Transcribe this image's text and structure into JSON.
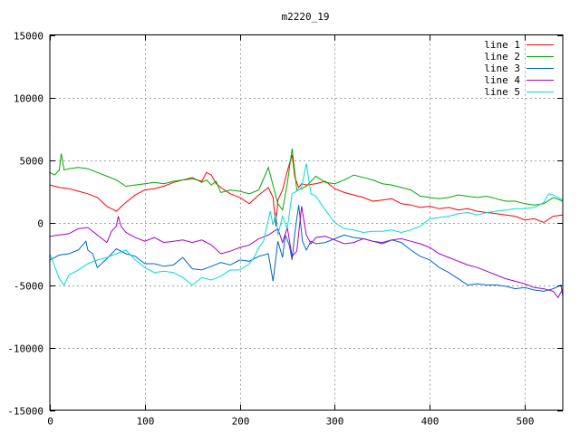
{
  "chart_data": {
    "type": "line",
    "title": "m2220_19",
    "xlabel": "",
    "ylabel": "",
    "xlim": [
      0,
      540
    ],
    "ylim": [
      -15000,
      15000
    ],
    "xticks": [
      0,
      100,
      200,
      300,
      400,
      500
    ],
    "yticks": [
      -15000,
      -10000,
      -5000,
      0,
      5000,
      10000,
      15000
    ],
    "grid": true,
    "legend_position": "top-right",
    "series": [
      {
        "name": "line 1",
        "color": "#ff0000",
        "x": [
          0,
          10,
          20,
          30,
          40,
          50,
          60,
          70,
          80,
          90,
          100,
          110,
          120,
          130,
          140,
          150,
          160,
          165,
          170,
          175,
          180,
          190,
          200,
          210,
          220,
          230,
          235,
          238,
          240,
          245,
          250,
          255,
          258,
          262,
          265,
          270,
          280,
          290,
          300,
          310,
          320,
          330,
          340,
          350,
          360,
          370,
          380,
          390,
          400,
          410,
          420,
          430,
          440,
          450,
          460,
          470,
          480,
          490,
          500,
          510,
          520,
          530,
          540
        ],
        "y": [
          3000,
          2800,
          2700,
          2500,
          2300,
          2000,
          1300,
          900,
          1600,
          2200,
          2600,
          2700,
          2900,
          3200,
          3400,
          3500,
          3300,
          4000,
          3800,
          3100,
          2800,
          2300,
          2000,
          1500,
          2200,
          2800,
          2000,
          -300,
          1800,
          2600,
          4100,
          5400,
          3600,
          2800,
          3100,
          3000,
          3100,
          3300,
          2700,
          2400,
          2200,
          2000,
          1700,
          1800,
          1900,
          1500,
          1400,
          1200,
          1300,
          1100,
          1200,
          1000,
          1100,
          900,
          800,
          700,
          600,
          500,
          200,
          300,
          0,
          500,
          600
        ]
      },
      {
        "name": "line 2",
        "color": "#00aa00",
        "x": [
          0,
          5,
          10,
          12,
          15,
          20,
          30,
          40,
          50,
          60,
          70,
          80,
          90,
          100,
          110,
          120,
          130,
          140,
          150,
          160,
          165,
          170,
          175,
          180,
          190,
          200,
          210,
          220,
          230,
          240,
          245,
          250,
          255,
          260,
          265,
          270,
          280,
          290,
          300,
          310,
          320,
          330,
          340,
          350,
          360,
          370,
          380,
          390,
          400,
          410,
          420,
          430,
          440,
          450,
          460,
          470,
          480,
          490,
          500,
          510,
          520,
          530,
          540
        ],
        "y": [
          4000,
          3800,
          4200,
          5500,
          4200,
          4300,
          4400,
          4300,
          4000,
          3700,
          3400,
          2900,
          3000,
          3100,
          3200,
          3100,
          3300,
          3400,
          3600,
          3200,
          3400,
          3000,
          3300,
          2400,
          2600,
          2500,
          2300,
          2600,
          4400,
          1500,
          1000,
          3100,
          5900,
          2600,
          2700,
          2900,
          3700,
          3200,
          3100,
          3400,
          3800,
          3600,
          3400,
          3100,
          3000,
          2800,
          2600,
          2100,
          2000,
          1900,
          2000,
          2200,
          2100,
          2000,
          2100,
          1900,
          1700,
          1700,
          1500,
          1400,
          1500,
          2000,
          1700
        ]
      },
      {
        "name": "line 3",
        "color": "#0066cc",
        "x": [
          0,
          10,
          20,
          30,
          38,
          40,
          45,
          50,
          60,
          70,
          80,
          90,
          100,
          110,
          120,
          130,
          140,
          150,
          160,
          170,
          180,
          190,
          200,
          210,
          220,
          230,
          235,
          240,
          245,
          248,
          252,
          255,
          258,
          262,
          266,
          270,
          275,
          280,
          290,
          300,
          310,
          320,
          330,
          340,
          350,
          360,
          370,
          380,
          390,
          400,
          410,
          420,
          430,
          440,
          450,
          460,
          470,
          480,
          490,
          500,
          510,
          520,
          530,
          538,
          540
        ],
        "y": [
          -3000,
          -2600,
          -2500,
          -2200,
          -1500,
          -2200,
          -2500,
          -3600,
          -2900,
          -2100,
          -2500,
          -2700,
          -3300,
          -3300,
          -3500,
          -3400,
          -2800,
          -3700,
          -3800,
          -3500,
          -3200,
          -3400,
          -3000,
          -3100,
          -2700,
          -2500,
          -4700,
          -1500,
          -2800,
          -1000,
          -1800,
          -3000,
          -800,
          1400,
          -1500,
          -2200,
          -1500,
          -1700,
          -1600,
          -1300,
          -1000,
          -1200,
          -1300,
          -1500,
          -1700,
          -1400,
          -1600,
          -2200,
          -2700,
          -3000,
          -3600,
          -4000,
          -4500,
          -5000,
          -4900,
          -5000,
          -5000,
          -5100,
          -5300,
          -5200,
          -5400,
          -5500,
          -5300,
          -5000,
          -5900
        ]
      },
      {
        "name": "line 4",
        "color": "#aa00cc",
        "x": [
          0,
          10,
          20,
          30,
          40,
          50,
          60,
          65,
          70,
          72,
          75,
          80,
          90,
          100,
          110,
          120,
          130,
          140,
          150,
          160,
          170,
          180,
          190,
          200,
          210,
          220,
          230,
          240,
          245,
          250,
          255,
          260,
          265,
          270,
          275,
          280,
          290,
          300,
          310,
          320,
          330,
          340,
          350,
          360,
          370,
          380,
          390,
          400,
          410,
          420,
          430,
          440,
          450,
          460,
          470,
          480,
          490,
          500,
          510,
          520,
          530,
          535,
          540
        ],
        "y": [
          -1100,
          -1000,
          -900,
          -500,
          -400,
          -1000,
          -1600,
          -700,
          -300,
          500,
          -300,
          -800,
          -1200,
          -1500,
          -1200,
          -1600,
          -1500,
          -1400,
          -1600,
          -1400,
          -1800,
          -2500,
          -2300,
          -2000,
          -1800,
          -1300,
          -1000,
          -500,
          -1600,
          -400,
          -2700,
          -2300,
          1300,
          -1000,
          -1700,
          -1200,
          -1100,
          -1400,
          -1700,
          -1600,
          -1300,
          -1500,
          -1600,
          -1400,
          -1300,
          -1500,
          -1700,
          -2000,
          -2500,
          -2800,
          -3100,
          -3400,
          -3600,
          -3900,
          -4200,
          -4500,
          -4700,
          -4900,
          -5200,
          -5300,
          -5500,
          -6000,
          -5300
        ]
      },
      {
        "name": "line 5",
        "color": "#00dddd",
        "x": [
          0,
          10,
          15,
          20,
          30,
          40,
          50,
          60,
          70,
          80,
          90,
          100,
          110,
          120,
          130,
          140,
          150,
          160,
          170,
          180,
          190,
          200,
          210,
          215,
          220,
          225,
          230,
          232,
          235,
          238,
          240,
          245,
          250,
          255,
          260,
          265,
          270,
          275,
          280,
          290,
          300,
          310,
          320,
          330,
          340,
          350,
          360,
          370,
          380,
          390,
          400,
          410,
          420,
          430,
          440,
          450,
          460,
          470,
          480,
          490,
          500,
          510,
          520,
          525,
          530,
          540
        ],
        "y": [
          -2500,
          -4500,
          -5000,
          -4200,
          -3800,
          -3300,
          -3000,
          -2800,
          -2500,
          -2200,
          -3000,
          -3600,
          -4000,
          -3900,
          -4000,
          -4400,
          -5000,
          -4400,
          -4600,
          -4300,
          -3800,
          -3800,
          -3300,
          -2800,
          -2000,
          -1500,
          200,
          900,
          -200,
          800,
          -1000,
          500,
          -500,
          2300,
          2500,
          2800,
          4700,
          2300,
          2100,
          1000,
          0,
          -500,
          -600,
          -800,
          -700,
          -700,
          -600,
          -800,
          -600,
          -300,
          300,
          400,
          500,
          700,
          800,
          600,
          800,
          900,
          1000,
          1100,
          1100,
          1200,
          1600,
          2300,
          2200,
          1800
        ]
      }
    ]
  }
}
